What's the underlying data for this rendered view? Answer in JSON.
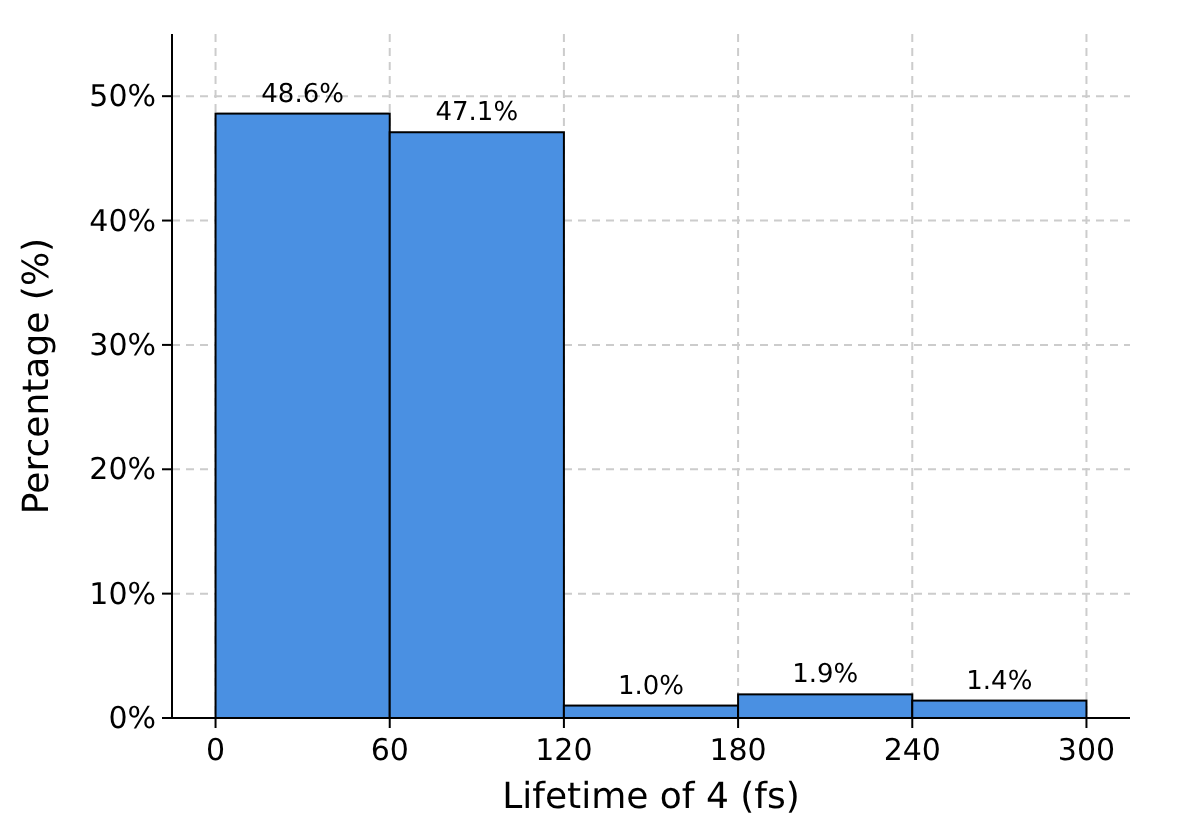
{
  "chart_data": {
    "type": "histogram",
    "xlabel": "Lifetime of 4 (fs)",
    "ylabel": "Percentage (%)",
    "bins": [
      0,
      60,
      120,
      180,
      240,
      300
    ],
    "values": [
      48.6,
      47.1,
      1.0,
      1.9,
      1.4
    ],
    "value_labels": [
      "48.6%",
      "47.1%",
      "1.0%",
      "1.9%",
      "1.4%"
    ],
    "color": "#4a90e2",
    "xlim": [
      -15,
      315
    ],
    "xticks": [
      0,
      60,
      120,
      180,
      240,
      300
    ],
    "ylim": [
      0,
      55
    ],
    "yticks": [
      {
        "value": 0,
        "label": "0%"
      },
      {
        "value": 10,
        "label": "10%"
      },
      {
        "value": 20,
        "label": "20%"
      },
      {
        "value": 30,
        "label": "30%"
      },
      {
        "value": 40,
        "label": "40%"
      },
      {
        "value": 50,
        "label": "50%"
      }
    ],
    "grid": true
  }
}
